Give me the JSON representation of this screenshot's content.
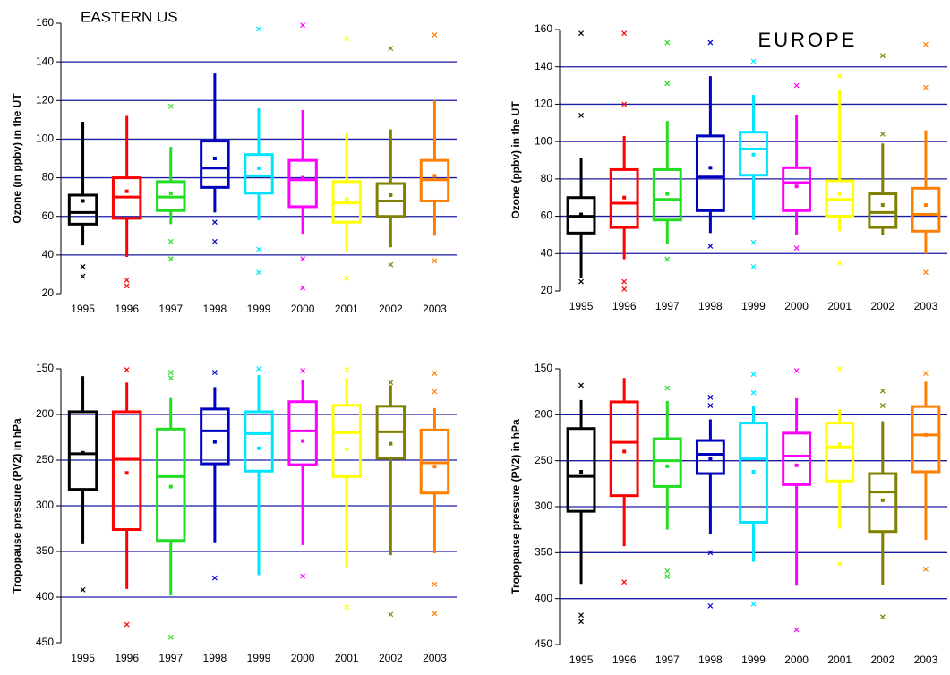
{
  "chart_data": [
    {
      "type": "box",
      "title": "EASTERN US",
      "y_label": "Ozone (in ppbv) in the UT",
      "categories": [
        "1995",
        "1996",
        "1997",
        "1998",
        "1999",
        "2000",
        "2001",
        "2002",
        "2003"
      ],
      "ylim": [
        20,
        160
      ],
      "yticks": [
        20,
        40,
        60,
        80,
        100,
        120,
        140,
        160
      ],
      "grid": true,
      "grid_color": "#1a1aa6",
      "colors": [
        "#000000",
        "#ff0000",
        "#22dd22",
        "#0000c0",
        "#00e5ff",
        "#ff00ff",
        "#ffff00",
        "#808000",
        "#ff8000"
      ],
      "boxes": [
        {
          "whislo": 45,
          "q1": 56,
          "med": 62,
          "q3": 71,
          "whishi": 109,
          "mean": 68,
          "fliers": [
            34,
            29
          ]
        },
        {
          "whislo": 39,
          "q1": 59,
          "med": 70,
          "q3": 80,
          "whishi": 112,
          "mean": 73,
          "fliers": [
            27,
            24
          ]
        },
        {
          "whislo": 56,
          "q1": 63,
          "med": 70,
          "q3": 78,
          "whishi": 96,
          "mean": 72,
          "fliers": [
            117,
            47,
            38
          ]
        },
        {
          "whislo": 62,
          "q1": 75,
          "med": 85,
          "q3": 99,
          "whishi": 134,
          "mean": 90,
          "fliers": [
            57,
            47
          ]
        },
        {
          "whislo": 58,
          "q1": 72,
          "med": 81,
          "q3": 92,
          "whishi": 116,
          "mean": 85,
          "fliers": [
            157,
            43,
            31
          ]
        },
        {
          "whislo": 51,
          "q1": 65,
          "med": 79,
          "q3": 89,
          "whishi": 115,
          "mean": 80,
          "fliers": [
            159,
            38,
            23
          ]
        },
        {
          "whislo": 42,
          "q1": 57,
          "med": 67,
          "q3": 78,
          "whishi": 103,
          "mean": 69,
          "fliers": [
            152,
            28
          ]
        },
        {
          "whislo": 44,
          "q1": 60,
          "med": 68,
          "q3": 77,
          "whishi": 105,
          "mean": 71,
          "fliers": [
            147,
            35
          ]
        },
        {
          "whislo": 50,
          "q1": 68,
          "med": 79,
          "q3": 89,
          "whishi": 120,
          "mean": 81,
          "fliers": [
            154,
            37
          ]
        }
      ]
    },
    {
      "type": "box",
      "title": "EUROPE",
      "y_label": "Ozone (ppbv) in the UT",
      "categories": [
        "1995",
        "1996",
        "1997",
        "1998",
        "1999",
        "2000",
        "2001",
        "2002",
        "2003"
      ],
      "ylim": [
        20,
        160
      ],
      "yticks": [
        20,
        40,
        60,
        80,
        100,
        120,
        140,
        160
      ],
      "grid": true,
      "grid_color": "#1a1aa6",
      "colors": [
        "#000000",
        "#ff0000",
        "#22dd22",
        "#0000c0",
        "#00e5ff",
        "#ff00ff",
        "#ffff00",
        "#808000",
        "#ff8000"
      ],
      "boxes": [
        {
          "whislo": 27,
          "q1": 51,
          "med": 60,
          "q3": 70,
          "whishi": 91,
          "mean": 61,
          "fliers": [
            158,
            114,
            25
          ]
        },
        {
          "whislo": 37,
          "q1": 54,
          "med": 67,
          "q3": 85,
          "whishi": 103,
          "mean": 70,
          "fliers": [
            158,
            120,
            25,
            21
          ]
        },
        {
          "whislo": 45,
          "q1": 58,
          "med": 69,
          "q3": 85,
          "whishi": 111,
          "mean": 72,
          "fliers": [
            153,
            131,
            37
          ]
        },
        {
          "whislo": 51,
          "q1": 63,
          "med": 81,
          "q3": 103,
          "whishi": 135,
          "mean": 86,
          "fliers": [
            153,
            44
          ]
        },
        {
          "whislo": 58,
          "q1": 82,
          "med": 96,
          "q3": 105,
          "whishi": 125,
          "mean": 93,
          "fliers": [
            143,
            46,
            33
          ]
        },
        {
          "whislo": 50,
          "q1": 63,
          "med": 78,
          "q3": 86,
          "whishi": 114,
          "mean": 76,
          "fliers": [
            130,
            43
          ]
        },
        {
          "whislo": 52,
          "q1": 60,
          "med": 69,
          "q3": 79,
          "whishi": 128,
          "mean": 72,
          "fliers": [
            135,
            35
          ]
        },
        {
          "whislo": 50,
          "q1": 54,
          "med": 62,
          "q3": 72,
          "whishi": 99,
          "mean": 66,
          "fliers": [
            146,
            104
          ]
        },
        {
          "whislo": 40,
          "q1": 52,
          "med": 61,
          "q3": 75,
          "whishi": 106,
          "mean": 66,
          "fliers": [
            152,
            129,
            30
          ]
        }
      ]
    },
    {
      "type": "box",
      "y_label": "Tropopause pressure (PV2) in hPa",
      "categories": [
        "1995",
        "1996",
        "1997",
        "1998",
        "1999",
        "2000",
        "2001",
        "2002",
        "2003"
      ],
      "ylim": [
        450,
        150
      ],
      "yticks": [
        150,
        200,
        250,
        300,
        350,
        400,
        450
      ],
      "grid": true,
      "grid_color": "#1a1aa6",
      "colors": [
        "#000000",
        "#ff0000",
        "#22dd22",
        "#0000c0",
        "#00e5ff",
        "#ff00ff",
        "#ffff00",
        "#808000",
        "#ff8000"
      ],
      "boxes": [
        {
          "whislo": 158,
          "q1": 197,
          "med": 243,
          "q3": 282,
          "whishi": 342,
          "mean": 242,
          "fliers": [
            392
          ]
        },
        {
          "whislo": 165,
          "q1": 197,
          "med": 249,
          "q3": 326,
          "whishi": 391,
          "mean": 264,
          "fliers": [
            151,
            430
          ]
        },
        {
          "whislo": 182,
          "q1": 216,
          "med": 268,
          "q3": 338,
          "whishi": 398,
          "mean": 279,
          "fliers": [
            154,
            160,
            444
          ]
        },
        {
          "whislo": 170,
          "q1": 194,
          "med": 218,
          "q3": 254,
          "whishi": 340,
          "mean": 230,
          "fliers": [
            154,
            379
          ]
        },
        {
          "whislo": 157,
          "q1": 197,
          "med": 221,
          "q3": 262,
          "whishi": 376,
          "mean": 237,
          "fliers": [
            150
          ]
        },
        {
          "whislo": 162,
          "q1": 186,
          "med": 218,
          "q3": 255,
          "whishi": 343,
          "mean": 229,
          "fliers": [
            152,
            377
          ]
        },
        {
          "whislo": 160,
          "q1": 190,
          "med": 220,
          "q3": 268,
          "whishi": 367,
          "mean": 238,
          "fliers": [
            151,
            411
          ]
        },
        {
          "whislo": 168,
          "q1": 191,
          "med": 219,
          "q3": 248,
          "whishi": 354,
          "mean": 232,
          "fliers": [
            165,
            419
          ]
        },
        {
          "whislo": 193,
          "q1": 217,
          "med": 253,
          "q3": 286,
          "whishi": 352,
          "mean": 257,
          "fliers": [
            155,
            175,
            386,
            418
          ]
        }
      ]
    },
    {
      "type": "box",
      "y_label": "Tropopause pressure (PV2) in hPa",
      "categories": [
        "1995",
        "1996",
        "1997",
        "1998",
        "1999",
        "2000",
        "2001",
        "2002",
        "2003"
      ],
      "ylim": [
        450,
        150
      ],
      "yticks": [
        150,
        200,
        250,
        300,
        350,
        400,
        450
      ],
      "grid": true,
      "grid_color": "#1a1aa6",
      "colors": [
        "#000000",
        "#ff0000",
        "#22dd22",
        "#0000c0",
        "#00e5ff",
        "#ff00ff",
        "#ffff00",
        "#808000",
        "#ff8000"
      ],
      "boxes": [
        {
          "whislo": 184,
          "q1": 215,
          "med": 267,
          "q3": 305,
          "whishi": 384,
          "mean": 262,
          "fliers": [
            168,
            418,
            425
          ]
        },
        {
          "whislo": 160,
          "q1": 186,
          "med": 230,
          "q3": 288,
          "whishi": 343,
          "mean": 240,
          "fliers": [
            382
          ]
        },
        {
          "whislo": 185,
          "q1": 226,
          "med": 250,
          "q3": 278,
          "whishi": 325,
          "mean": 256,
          "fliers": [
            171,
            370,
            376
          ]
        },
        {
          "whislo": 205,
          "q1": 228,
          "med": 243,
          "q3": 264,
          "whishi": 330,
          "mean": 248,
          "fliers": [
            181,
            190,
            350,
            408
          ]
        },
        {
          "whislo": 190,
          "q1": 209,
          "med": 248,
          "q3": 317,
          "whishi": 360,
          "mean": 262,
          "fliers": [
            156,
            176,
            406
          ]
        },
        {
          "whislo": 182,
          "q1": 220,
          "med": 245,
          "q3": 276,
          "whishi": 386,
          "mean": 255,
          "fliers": [
            152,
            434
          ]
        },
        {
          "whislo": 194,
          "q1": 209,
          "med": 235,
          "q3": 272,
          "whishi": 324,
          "mean": 232,
          "fliers": [
            150,
            362
          ]
        },
        {
          "whislo": 207,
          "q1": 264,
          "med": 284,
          "q3": 327,
          "whishi": 385,
          "mean": 293,
          "fliers": [
            174,
            190,
            420
          ]
        },
        {
          "whislo": 164,
          "q1": 191,
          "med": 222,
          "q3": 262,
          "whishi": 336,
          "mean": 222,
          "fliers": [
            155,
            368
          ]
        }
      ]
    }
  ]
}
